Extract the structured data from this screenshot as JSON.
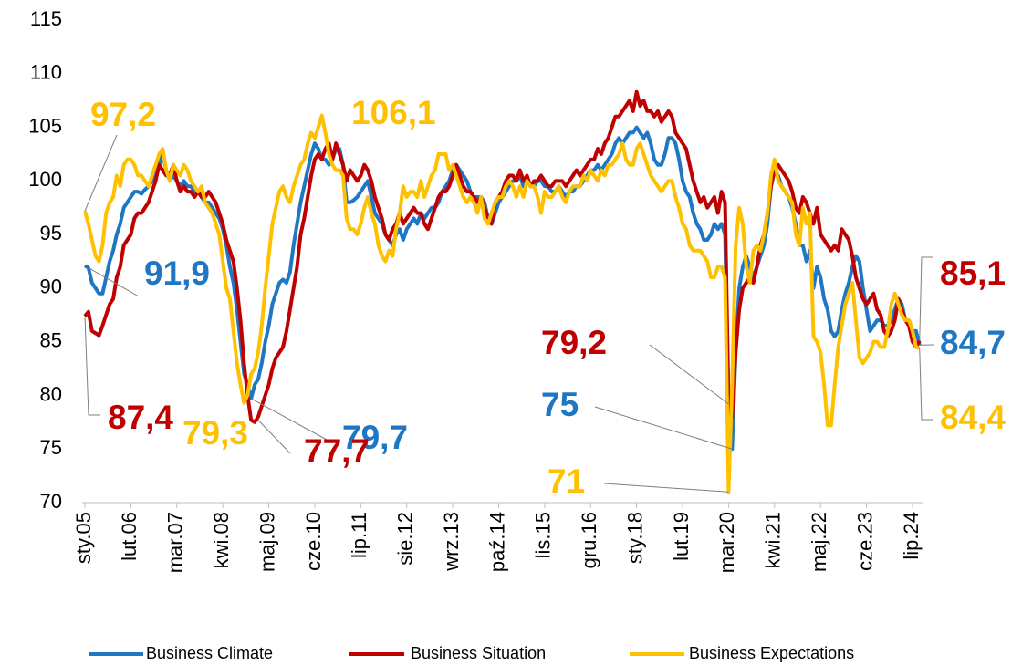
{
  "chart_data": {
    "type": "line",
    "categories": [
      "sty.05",
      null,
      null,
      null,
      null,
      null,
      null,
      null,
      null,
      null,
      null,
      null,
      null,
      "lut.06",
      null,
      null,
      null,
      null,
      null,
      null,
      null,
      null,
      null,
      null,
      null,
      null,
      "mar.07",
      null,
      null,
      null,
      null,
      null,
      null,
      null,
      null,
      null,
      null,
      null,
      null,
      "kwi.08",
      null,
      null,
      null,
      null,
      null,
      null,
      null,
      null,
      null,
      null,
      null,
      null,
      "maj.09",
      null,
      null,
      null,
      null,
      null,
      null,
      null,
      null,
      null,
      null,
      null,
      null,
      "cze.10",
      null,
      null,
      null,
      null,
      null,
      null,
      null,
      null,
      null,
      null,
      null,
      null,
      "lip.11",
      null,
      null,
      null,
      null,
      null,
      null,
      null,
      null,
      null,
      null,
      null,
      null,
      "sie.12",
      null,
      null,
      null,
      null,
      null,
      null,
      null,
      null,
      null,
      null,
      null,
      null,
      "wrz.13",
      null,
      null,
      null,
      null,
      null,
      null,
      null,
      null,
      null,
      null,
      null,
      null,
      "paź.14",
      null,
      null,
      null,
      null,
      null,
      null,
      null,
      null,
      null,
      null,
      null,
      null,
      "lis.15",
      null,
      null,
      null,
      null,
      null,
      null,
      null,
      null,
      null,
      null,
      null,
      null,
      "gru.16",
      null,
      null,
      null,
      null,
      null,
      null,
      null,
      null,
      null,
      null,
      null,
      null,
      "sty.18",
      null,
      null,
      null,
      null,
      null,
      null,
      null,
      null,
      null,
      null,
      null,
      null,
      "lut.19",
      null,
      null,
      null,
      null,
      null,
      null,
      null,
      null,
      null,
      null,
      null,
      null,
      "mar.20",
      null,
      null,
      null,
      null,
      null,
      null,
      null,
      null,
      null,
      null,
      null,
      null,
      "kwi.21",
      null,
      null,
      null,
      null,
      null,
      null,
      null,
      null,
      null,
      null,
      null,
      null,
      "maj.22",
      null,
      null,
      null,
      null,
      null,
      null,
      null,
      null,
      null,
      null,
      null,
      null,
      "cze.23",
      null,
      null,
      null,
      null,
      null,
      null,
      null,
      null,
      null,
      null,
      null,
      null,
      "lip.24",
      null,
      null
    ],
    "series": [
      {
        "name": "Business Climate",
        "color": "#1f77c4",
        "values": [
          92.1,
          91.9,
          90.5,
          90,
          89.5,
          89.5,
          91,
          92.5,
          93.5,
          95,
          96,
          97.5,
          98,
          98.5,
          99,
          99,
          98.8,
          99.2,
          99.5,
          100,
          100.5,
          101.5,
          102.5,
          101,
          100,
          100.5,
          100,
          99.5,
          100,
          99.5,
          99.5,
          99,
          99,
          98.5,
          98,
          98,
          97.5,
          97,
          96.5,
          95.5,
          94,
          92,
          90.5,
          88,
          85,
          82,
          81,
          79.7,
          81,
          81.5,
          83,
          85,
          86.5,
          88.5,
          89.5,
          90.5,
          90.8,
          90.5,
          91.5,
          94,
          96,
          98,
          99.5,
          101,
          102.5,
          103.5,
          103,
          102,
          102,
          101.5,
          102,
          103,
          103,
          101.5,
          98,
          98,
          98.2,
          98.5,
          99,
          99.5,
          100,
          98.5,
          97,
          96.5,
          96,
          95,
          94.5,
          94,
          95,
          95.5,
          94.5,
          95.5,
          96,
          96.5,
          96,
          97,
          96.5,
          97,
          97.5,
          97.5,
          98,
          99,
          99.5,
          100,
          101,
          101.5,
          101,
          100.5,
          100,
          99,
          98.5,
          98.5,
          98.5,
          98,
          96.5,
          96,
          97,
          98,
          98.5,
          99,
          99.5,
          100,
          100,
          100.5,
          99.5,
          100,
          99.5,
          99.5,
          100,
          100,
          99.5,
          99.5,
          99,
          99,
          99.5,
          99,
          98.5,
          99,
          99,
          99.5,
          99.5,
          100,
          100.5,
          101,
          101,
          101.5,
          101,
          101.5,
          102,
          102.5,
          103.5,
          104,
          103.5,
          104,
          104.5,
          104.5,
          105,
          104.5,
          104,
          104.5,
          103.5,
          102,
          101.5,
          101.5,
          102.5,
          104,
          104,
          103.5,
          102,
          100,
          99,
          98.5,
          97,
          96,
          95.5,
          94.5,
          94.5,
          95,
          96,
          95.5,
          96,
          95,
          79,
          75,
          84,
          90,
          92,
          93,
          92,
          91,
          92,
          93,
          94,
          96,
          99.5,
          101,
          100.5,
          99.5,
          99,
          98.5,
          97.5,
          96,
          94,
          94,
          92.5,
          93.5,
          90,
          92,
          91,
          89,
          88,
          86,
          85.5,
          86,
          88,
          89.5,
          90.5,
          92,
          93,
          92.5,
          90,
          88,
          86,
          86.5,
          87,
          87,
          86.5,
          86.5,
          87,
          88,
          89,
          88.5,
          87,
          87,
          86,
          86,
          84.7
        ]
      },
      {
        "name": "Business Situation",
        "color": "#c00000",
        "values": [
          87.4,
          87.8,
          86,
          85.8,
          85.6,
          86.5,
          87.5,
          88.5,
          89,
          91,
          92,
          94,
          94.5,
          95,
          96.5,
          97,
          97,
          97.5,
          98,
          99,
          100,
          101.5,
          101,
          100.5,
          100.5,
          101.5,
          100,
          99,
          99.5,
          99,
          99,
          98.5,
          99,
          98.5,
          98.5,
          99,
          98.5,
          98,
          97,
          96,
          94.5,
          93.5,
          92.5,
          90,
          87,
          83,
          80,
          77.7,
          77.5,
          78,
          79,
          80,
          81,
          82.5,
          83.5,
          84,
          84.5,
          86,
          88,
          90,
          92,
          95,
          96.5,
          98.5,
          100.5,
          102,
          102.5,
          102,
          103,
          103.5,
          102,
          103.5,
          102.5,
          101.5,
          100,
          101,
          100.5,
          100,
          100.5,
          101.5,
          101,
          100,
          98.5,
          97.5,
          96.5,
          95,
          94.5,
          95.5,
          96,
          97,
          96,
          96.5,
          97,
          97.5,
          97,
          97,
          96,
          95.5,
          96.5,
          97.5,
          98.5,
          99,
          99,
          99.5,
          100.5,
          101.5,
          100.5,
          99.5,
          99,
          99,
          98.5,
          98,
          98.5,
          97.5,
          96.5,
          96,
          98,
          98.5,
          99,
          100,
          100.5,
          100.5,
          100,
          101,
          100,
          100.5,
          99.5,
          100,
          100,
          100.5,
          100,
          99.5,
          99.5,
          100,
          100,
          100,
          99.5,
          100,
          100.5,
          101,
          100.5,
          101,
          101.5,
          102,
          102,
          103,
          102.5,
          103.5,
          104,
          105,
          106,
          106,
          106.5,
          107,
          107.5,
          106.5,
          108.3,
          107,
          107.5,
          106.5,
          106.5,
          106,
          106.5,
          105.5,
          106,
          106.5,
          106,
          104.5,
          104,
          103.5,
          103,
          101.5,
          100,
          99,
          98,
          98.5,
          97.5,
          98,
          98.5,
          97,
          99,
          98,
          79.2,
          78,
          84,
          88,
          90,
          90.5,
          91,
          90.5,
          92,
          94,
          95,
          97,
          99.5,
          101,
          101.5,
          101,
          100.5,
          100,
          99,
          97.5,
          97,
          98.5,
          98,
          97,
          96,
          97.5,
          95,
          94.5,
          94,
          93.5,
          94,
          93.5,
          95.5,
          95,
          94.5,
          93,
          91,
          90,
          89,
          88.5,
          89,
          89.5,
          88,
          87.5,
          86,
          85.5,
          86,
          87,
          89,
          88,
          87,
          86.5,
          85,
          84.5,
          85.1
        ]
      },
      {
        "name": "Business Expectations",
        "color": "#ffc000",
        "values": [
          97.2,
          96,
          94.5,
          93,
          92.5,
          94,
          97,
          98,
          98.5,
          100.5,
          99.5,
          101.5,
          102,
          102,
          101.5,
          100.5,
          100.5,
          100,
          99.5,
          100.5,
          101.5,
          102.5,
          103,
          101,
          100,
          101.5,
          101,
          100.5,
          101.5,
          101,
          100,
          99.5,
          99,
          99.5,
          98,
          97.5,
          97,
          96,
          95,
          92.5,
          90,
          89,
          86,
          83,
          81,
          79.3,
          80,
          82,
          82.5,
          84,
          86.5,
          90,
          93,
          96,
          97.5,
          99,
          99.5,
          98.5,
          98,
          99.5,
          100.5,
          101.5,
          102,
          103.5,
          104.5,
          104,
          105,
          106.1,
          104.5,
          102.5,
          101.5,
          101,
          101,
          100.5,
          96.5,
          95.5,
          95.5,
          95,
          96,
          97.5,
          98.5,
          97,
          96,
          94,
          93,
          92.5,
          93.5,
          93,
          95.5,
          97,
          99.5,
          98.5,
          99,
          99,
          98.5,
          100,
          98.5,
          99.5,
          100.5,
          101,
          102.5,
          102.5,
          102.5,
          101,
          101.5,
          100.5,
          99.5,
          98.5,
          98,
          98.5,
          98,
          97,
          98.5,
          96.5,
          96,
          97,
          98,
          98.5,
          98.5,
          99.5,
          100,
          99.5,
          98.5,
          99.5,
          98.5,
          100,
          99.5,
          99.5,
          98.5,
          97,
          99,
          98.5,
          98.5,
          99,
          99.5,
          98.5,
          98,
          99,
          99.5,
          99.5,
          99.5,
          100.5,
          100,
          101,
          100.5,
          100,
          101,
          100.5,
          101.5,
          101.5,
          102,
          102.5,
          103.5,
          102,
          101.5,
          101.5,
          103,
          103.5,
          102.5,
          101.5,
          100.5,
          100,
          99.5,
          99,
          99.5,
          100,
          100,
          98.5,
          97.5,
          96,
          95.5,
          94,
          93.5,
          93.5,
          93.5,
          93,
          92.5,
          91,
          91,
          92,
          92,
          91,
          71,
          81,
          94,
          97.5,
          96,
          92,
          90.5,
          93.5,
          94,
          93.5,
          95,
          97,
          100.5,
          102,
          100,
          99.5,
          99,
          98.5,
          98,
          95,
          94,
          97.5,
          96,
          97,
          85.5,
          85,
          84,
          81,
          77.2,
          77.2,
          81,
          84.5,
          86.5,
          88.5,
          89.5,
          90.5,
          87,
          83.5,
          83,
          83.5,
          84,
          85,
          85,
          84.5,
          84.5,
          86,
          88.5,
          89.5,
          88.5,
          87.5,
          87,
          87,
          86,
          84.5,
          84.4
        ]
      }
    ],
    "annotations": [
      {
        "text": "97,2",
        "value": 97.2
      },
      {
        "text": "91,9",
        "value": 91.9
      },
      {
        "text": "87,4",
        "value": 87.4
      },
      {
        "text": "79,3",
        "value": 79.3
      },
      {
        "text": "79,7",
        "value": 79.7
      },
      {
        "text": "77,7",
        "value": 77.7
      },
      {
        "text": "106,1",
        "value": 106.1
      },
      {
        "text": "79,2",
        "value": 79.2
      },
      {
        "text": "75",
        "value": 75
      },
      {
        "text": "71",
        "value": 71
      },
      {
        "text": "85,1",
        "value": 85.1
      },
      {
        "text": "84,7",
        "value": 84.7
      },
      {
        "text": "84,4",
        "value": 84.4
      }
    ],
    "ylim": [
      70,
      115
    ],
    "yticks": [
      70,
      75,
      80,
      85,
      90,
      95,
      100,
      105,
      110,
      115
    ],
    "legend": "bottom"
  }
}
